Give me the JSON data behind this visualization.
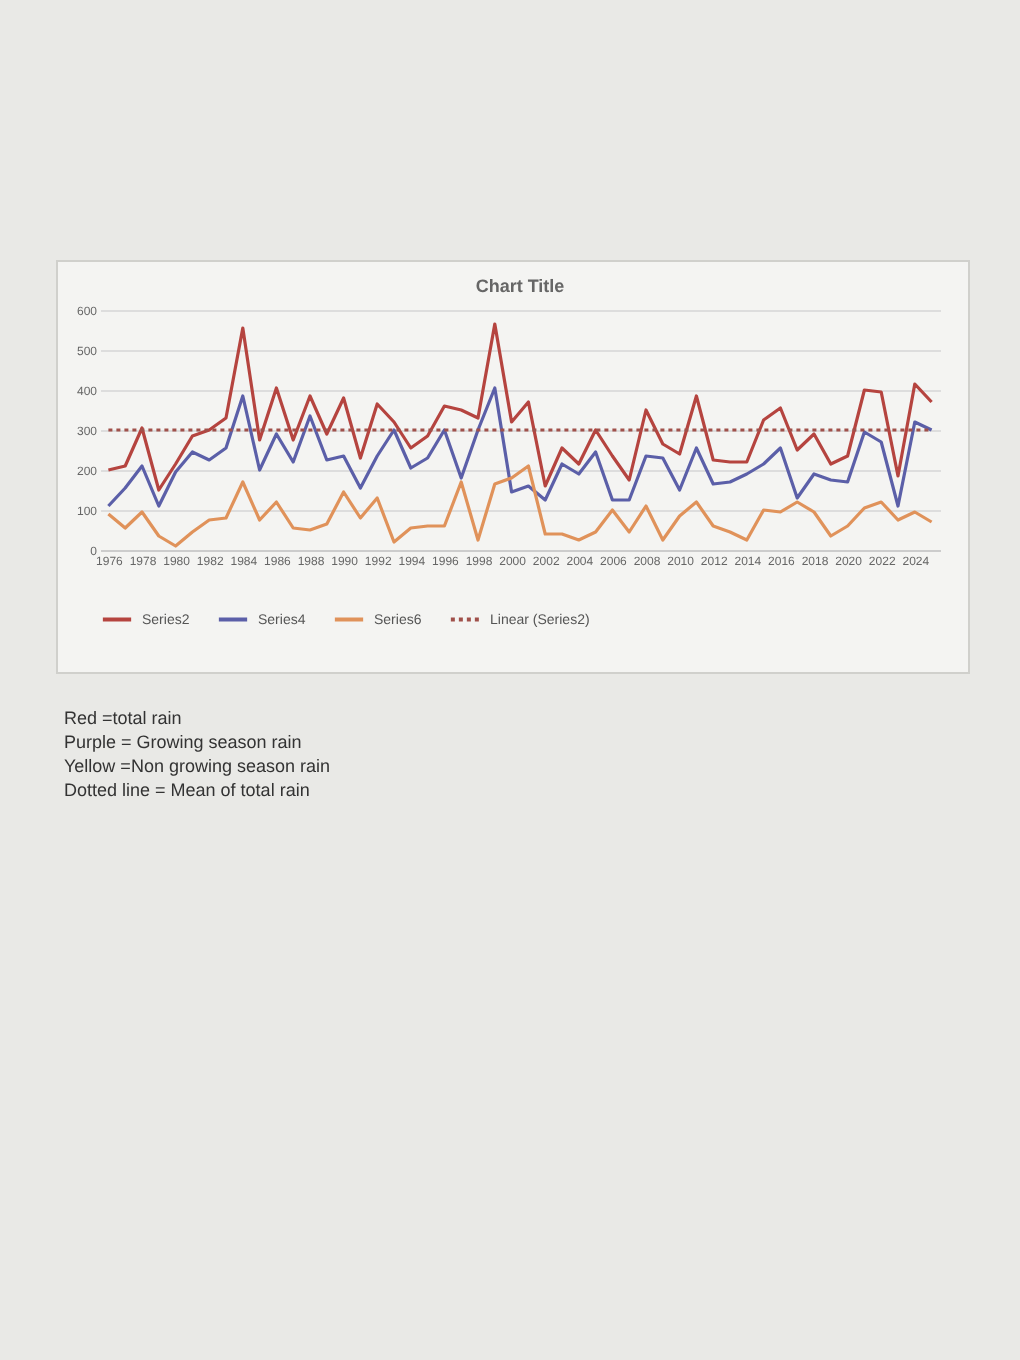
{
  "chart_data": {
    "type": "line",
    "title": "Chart Title",
    "x": [
      1976,
      1977,
      1978,
      1979,
      1980,
      1981,
      1982,
      1983,
      1984,
      1985,
      1986,
      1987,
      1988,
      1989,
      1990,
      1991,
      1992,
      1993,
      1994,
      1995,
      1996,
      1997,
      1998,
      1999,
      2000,
      2001,
      2002,
      2003,
      2004,
      2005,
      2006,
      2007,
      2008,
      2009,
      2010,
      2011,
      2012,
      2013,
      2014,
      2015,
      2016,
      2017,
      2018,
      2019,
      2020,
      2021,
      2022,
      2023,
      2024,
      2025
    ],
    "xlim": [
      1975.5,
      2025.5
    ],
    "xticks": [
      1976,
      1978,
      1980,
      1982,
      1984,
      1986,
      1988,
      1990,
      1992,
      1994,
      1996,
      1998,
      2000,
      2002,
      2004,
      2006,
      2008,
      2010,
      2012,
      2014,
      2016,
      2018,
      2020,
      2022,
      2024
    ],
    "ylim": [
      0,
      600
    ],
    "yticks": [
      0,
      100,
      200,
      300,
      400,
      500,
      600
    ],
    "grid": "y",
    "legend": "bottom",
    "series": [
      {
        "name": "Series2",
        "color": "#b5443f",
        "values": [
          200,
          210,
          305,
          150,
          215,
          285,
          300,
          330,
          555,
          275,
          405,
          275,
          385,
          290,
          380,
          230,
          365,
          320,
          255,
          285,
          360,
          350,
          330,
          565,
          320,
          370,
          160,
          255,
          215,
          300,
          235,
          175,
          350,
          265,
          240,
          385,
          225,
          220,
          220,
          325,
          355,
          250,
          290,
          215,
          235,
          400,
          395,
          185,
          415,
          370
        ]
      },
      {
        "name": "Series4",
        "color": "#5b5fa8",
        "values": [
          110,
          155,
          210,
          110,
          195,
          245,
          225,
          255,
          385,
          200,
          290,
          220,
          335,
          225,
          235,
          155,
          235,
          300,
          205,
          230,
          300,
          180,
          300,
          405,
          145,
          160,
          125,
          215,
          190,
          245,
          125,
          125,
          235,
          230,
          150,
          255,
          165,
          170,
          190,
          215,
          255,
          130,
          190,
          175,
          170,
          295,
          270,
          110,
          320,
          300
        ]
      },
      {
        "name": "Series6",
        "color": "#e0925a",
        "values": [
          90,
          55,
          95,
          35,
          10,
          45,
          75,
          80,
          170,
          75,
          120,
          55,
          50,
          65,
          145,
          80,
          130,
          20,
          55,
          60,
          60,
          170,
          25,
          165,
          180,
          210,
          40,
          40,
          25,
          45,
          100,
          45,
          110,
          25,
          85,
          120,
          60,
          45,
          25,
          100,
          95,
          120,
          95,
          35,
          60,
          105,
          120,
          75,
          95,
          70
        ]
      },
      {
        "name": "Linear (Series2)",
        "color": "#a0504a",
        "line_style": "dotted",
        "x": [
          1976,
          2025
        ],
        "values": [
          300,
          300
        ]
      }
    ],
    "annotations": [
      "Red =total rain",
      "Purple = Growing season rain",
      "Yellow =Non growing season rain",
      "Dotted line = Mean of total rain"
    ]
  }
}
